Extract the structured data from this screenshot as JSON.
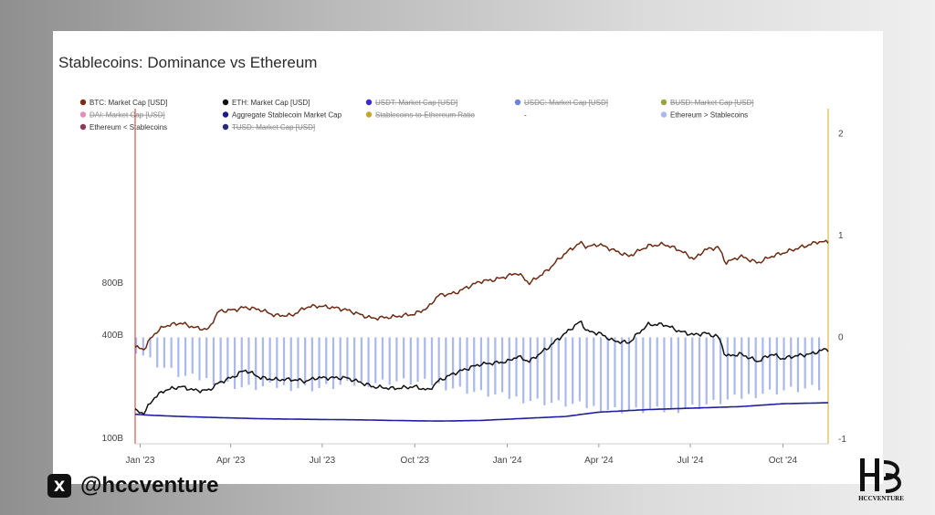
{
  "chart_data": {
    "type": "line",
    "title": "Stablecoins: Dominance vs Ethereum",
    "x_ticks": [
      "Jan '23",
      "Apr '23",
      "Jul '23",
      "Oct '23",
      "Jan '24",
      "Apr '24",
      "Jul '24",
      "Oct '24"
    ],
    "x_range": [
      "2022-12-27",
      "2024-11-15"
    ],
    "y_left": {
      "ticks": [
        "100B",
        "400B",
        "800B"
      ],
      "scale": "log"
    },
    "y_right": {
      "ticks": [
        "-1",
        "0",
        "1",
        "2"
      ],
      "range": [
        -1,
        2.2
      ]
    },
    "legend": [
      {
        "label": "BTC: Market Cap [USD]",
        "color": "#7a2e13",
        "hidden": false
      },
      {
        "label": "ETH: Market Cap [USD]",
        "color": "#111111",
        "hidden": false
      },
      {
        "label": "USDT: Market Cap [USD]",
        "color": "#3b2ad6",
        "hidden": true
      },
      {
        "label": "USDC: Market Cap [USD]",
        "color": "#6e7fe0",
        "hidden": true
      },
      {
        "label": "BUSD: Market Cap [USD]",
        "color": "#9aa33a",
        "hidden": true
      },
      {
        "label": "DAI: Market Cap [USD]",
        "color": "#e58fb6",
        "hidden": true
      },
      {
        "label": "Aggregate Stablecoin Market Cap",
        "color": "#1a1a8c",
        "hidden": false
      },
      {
        "label": "Stablecoins-to-Ethereum Ratio",
        "color": "#c8a62a",
        "hidden": true
      },
      {
        "label": "-",
        "color": "",
        "hidden": false
      },
      {
        "label": "Ethereum > Stablecoins",
        "color": "#aab8ec",
        "hidden": false
      },
      {
        "label": "Ethereum < Stablecoins",
        "color": "#8c3a5a",
        "hidden": false
      },
      {
        "label": "TUSD: Market Cap [USD]",
        "color": "#2a2a7a",
        "hidden": true
      }
    ],
    "series": [
      {
        "name": "BTC: Market Cap [USD]",
        "color": "#6b2a12",
        "x": [
          "2022-12-27",
          "2023-01-05",
          "2023-01-14",
          "2023-01-25",
          "2023-02-10",
          "2023-02-25",
          "2023-03-10",
          "2023-03-20",
          "2023-04-05",
          "2023-04-15",
          "2023-05-01",
          "2023-05-15",
          "2023-06-01",
          "2023-06-15",
          "2023-06-25",
          "2023-07-10",
          "2023-07-25",
          "2023-08-10",
          "2023-08-20",
          "2023-09-10",
          "2023-10-01",
          "2023-10-15",
          "2023-10-24",
          "2023-11-10",
          "2023-12-05",
          "2023-12-20",
          "2024-01-01",
          "2024-01-11",
          "2024-01-23",
          "2024-02-10",
          "2024-02-28",
          "2024-03-14",
          "2024-03-20",
          "2024-04-01",
          "2024-04-15",
          "2024-05-01",
          "2024-05-20",
          "2024-06-05",
          "2024-06-20",
          "2024-07-05",
          "2024-07-15",
          "2024-07-29",
          "2024-08-05",
          "2024-08-20",
          "2024-09-06",
          "2024-09-20",
          "2024-10-01",
          "2024-10-10",
          "2024-10-29",
          "2024-11-05",
          "2024-11-12"
        ],
        "values": [
          340,
          330,
          400,
          450,
          470,
          440,
          430,
          550,
          560,
          580,
          560,
          520,
          520,
          580,
          590,
          580,
          560,
          520,
          500,
          510,
          530,
          580,
          680,
          700,
          820,
          840,
          880,
          920,
          800,
          950,
          1200,
          1380,
          1300,
          1350,
          1250,
          1150,
          1320,
          1350,
          1250,
          1100,
          1250,
          1300,
          1050,
          1150,
          1050,
          1150,
          1200,
          1250,
          1350,
          1400,
          1390
        ]
      },
      {
        "name": "ETH: Market Cap [USD]",
        "color": "#111111",
        "x": [
          "2022-12-27",
          "2023-01-05",
          "2023-01-14",
          "2023-01-25",
          "2023-02-10",
          "2023-02-25",
          "2023-03-10",
          "2023-03-20",
          "2023-04-05",
          "2023-04-15",
          "2023-05-01",
          "2023-05-15",
          "2023-06-01",
          "2023-06-15",
          "2023-06-25",
          "2023-07-10",
          "2023-07-25",
          "2023-08-10",
          "2023-08-20",
          "2023-09-10",
          "2023-10-01",
          "2023-10-15",
          "2023-10-24",
          "2023-11-10",
          "2023-12-05",
          "2023-12-20",
          "2024-01-01",
          "2024-01-11",
          "2024-01-23",
          "2024-02-10",
          "2024-02-28",
          "2024-03-14",
          "2024-03-20",
          "2024-04-01",
          "2024-04-15",
          "2024-05-01",
          "2024-05-20",
          "2024-06-05",
          "2024-06-20",
          "2024-07-05",
          "2024-07-15",
          "2024-07-29",
          "2024-08-05",
          "2024-08-20",
          "2024-09-06",
          "2024-09-20",
          "2024-10-01",
          "2024-10-10",
          "2024-10-29",
          "2024-11-05",
          "2024-11-12"
        ],
        "values": [
          145,
          140,
          170,
          190,
          200,
          190,
          190,
          210,
          230,
          250,
          225,
          220,
          220,
          215,
          225,
          225,
          225,
          210,
          200,
          195,
          200,
          190,
          215,
          240,
          270,
          275,
          280,
          300,
          280,
          335,
          410,
          480,
          420,
          410,
          370,
          360,
          460,
          460,
          420,
          400,
          410,
          390,
          300,
          310,
          280,
          310,
          290,
          300,
          310,
          320,
          330
        ]
      },
      {
        "name": "Aggregate Stablecoin Market Cap",
        "color": "#1f1fa0",
        "x": [
          "2022-12-27",
          "2023-01-14",
          "2023-02-10",
          "2023-03-20",
          "2023-05-01",
          "2023-06-15",
          "2023-08-10",
          "2023-09-10",
          "2023-10-24",
          "2023-12-05",
          "2024-01-11",
          "2024-02-28",
          "2024-04-01",
          "2024-05-20",
          "2024-07-05",
          "2024-08-20",
          "2024-10-01",
          "2024-11-12"
        ],
        "values": [
          138,
          136,
          134,
          132,
          130,
          129,
          128,
          127,
          126,
          127,
          130,
          134,
          142,
          147,
          150,
          153,
          159,
          161
        ]
      }
    ],
    "ratio_bars": {
      "name": "Ethereum > Stablecoins",
      "color": "#aab8ec",
      "x": [
        "2022-12-27",
        "2023-01-14",
        "2023-02-10",
        "2023-03-10",
        "2023-04-15",
        "2023-05-15",
        "2023-06-25",
        "2023-08-10",
        "2023-09-10",
        "2023-10-15",
        "2023-11-10",
        "2023-12-05",
        "2024-01-11",
        "2024-02-10",
        "2024-03-14",
        "2024-04-01",
        "2024-05-01",
        "2024-06-05",
        "2024-07-05",
        "2024-08-05",
        "2024-09-06",
        "2024-10-01",
        "2024-11-12"
      ],
      "values": [
        -0.12,
        -0.25,
        -0.38,
        -0.42,
        -0.5,
        -0.48,
        -0.5,
        -0.45,
        -0.43,
        -0.45,
        -0.5,
        -0.55,
        -0.6,
        -0.64,
        -0.67,
        -0.7,
        -0.72,
        -0.72,
        -0.68,
        -0.62,
        -0.55,
        -0.52,
        -0.5
      ]
    }
  },
  "footer": {
    "x_icon": "x-logo-icon",
    "x_glyph": "X",
    "handle": "@hccventure",
    "brand": "HCCVENTURE"
  }
}
